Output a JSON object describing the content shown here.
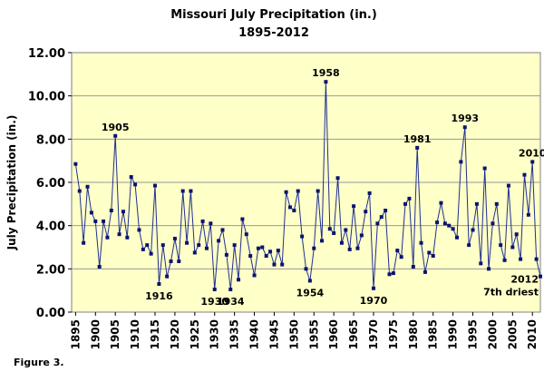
{
  "chart_data": {
    "type": "line",
    "title": "Missouri July Precipitation (in.)",
    "subtitle": "1895-2012",
    "xlabel": "",
    "ylabel": "July Precipitation (in.)",
    "ylim": [
      0,
      12
    ],
    "yticks": [
      "0.00",
      "2.00",
      "4.00",
      "6.00",
      "8.00",
      "10.00",
      "12.00"
    ],
    "xlim": [
      1894,
      2012
    ],
    "xticks": [
      "1895",
      "1900",
      "1905",
      "1910",
      "1915",
      "1920",
      "1925",
      "1930",
      "1935",
      "1940",
      "1945",
      "1950",
      "1955",
      "1960",
      "1965",
      "1970",
      "1975",
      "1980",
      "1985",
      "1990",
      "1995",
      "2000",
      "2005",
      "2010"
    ],
    "grid": true,
    "colors": {
      "line": "#1f2f8f",
      "marker": "#0a1470",
      "plot_bg": "#ffffc8",
      "grid": "#999999"
    },
    "series": [
      {
        "x": [
          1895,
          1896,
          1897,
          1898,
          1899,
          1900,
          1901,
          1902,
          1903,
          1904,
          1905,
          1906,
          1907,
          1908,
          1909,
          1910,
          1911,
          1912,
          1913,
          1914,
          1915,
          1916,
          1917,
          1918,
          1919,
          1920,
          1921,
          1922,
          1923,
          1924,
          1925,
          1926,
          1927,
          1928,
          1929,
          1930,
          1931,
          1932,
          1933,
          1934,
          1935,
          1936,
          1937,
          1938,
          1939,
          1940,
          1941,
          1942,
          1943,
          1944,
          1945,
          1946,
          1947,
          1948,
          1949,
          1950,
          1951,
          1952,
          1953,
          1954,
          1955,
          1956,
          1957,
          1958,
          1959,
          1960,
          1961,
          1962,
          1963,
          1964,
          1965,
          1966,
          1967,
          1968,
          1969,
          1970,
          1971,
          1972,
          1973,
          1974,
          1975,
          1976,
          1977,
          1978,
          1979,
          1980,
          1981,
          1982,
          1983,
          1984,
          1985,
          1986,
          1987,
          1988,
          1989,
          1990,
          1991,
          1992,
          1993,
          1994,
          1995,
          1996,
          1997,
          1998,
          1999,
          2000,
          2001,
          2002,
          2003,
          2004,
          2005,
          2006,
          2007,
          2008,
          2009,
          2010,
          2011,
          2012
        ],
        "values": [
          6.85,
          5.6,
          3.2,
          5.8,
          4.6,
          4.2,
          2.1,
          4.2,
          3.45,
          4.7,
          8.15,
          3.6,
          4.65,
          3.45,
          6.25,
          5.9,
          3.8,
          2.9,
          3.1,
          2.7,
          5.85,
          1.3,
          3.1,
          1.65,
          2.35,
          3.4,
          2.35,
          5.6,
          3.2,
          5.6,
          2.75,
          3.1,
          4.2,
          2.95,
          4.1,
          1.05,
          3.3,
          3.8,
          2.65,
          1.05,
          3.1,
          1.5,
          4.3,
          3.6,
          2.6,
          1.7,
          2.95,
          3.0,
          2.6,
          2.8,
          2.2,
          2.85,
          2.2,
          5.55,
          4.85,
          4.7,
          5.6,
          3.5,
          2.0,
          1.45,
          2.95,
          5.6,
          3.3,
          10.65,
          3.85,
          3.65,
          6.2,
          3.2,
          3.8,
          2.9,
          4.9,
          2.95,
          3.55,
          4.65,
          5.5,
          1.1,
          4.1,
          4.4,
          4.7,
          1.75,
          1.8,
          2.85,
          2.55,
          5.0,
          5.25,
          2.1,
          7.6,
          3.2,
          1.85,
          2.75,
          2.6,
          4.15,
          5.05,
          4.1,
          4.0,
          3.85,
          3.45,
          6.95,
          8.55,
          3.1,
          3.8,
          5.0,
          2.25,
          6.65,
          2.0,
          4.1,
          5.0,
          3.1,
          2.4,
          5.85,
          3.0,
          3.6,
          2.45,
          6.35,
          4.5,
          6.95,
          2.45,
          1.65
        ]
      }
    ],
    "annotations": [
      {
        "text": "1905",
        "year": 1905
      },
      {
        "text": "1916",
        "year": 1916
      },
      {
        "text": "1930",
        "year": 1930
      },
      {
        "text": "1934",
        "year": 1934
      },
      {
        "text": "1954",
        "year": 1954
      },
      {
        "text": "1958",
        "year": 1958
      },
      {
        "text": "1970",
        "year": 1970
      },
      {
        "text": "1981",
        "year": 1981
      },
      {
        "text": "1993",
        "year": 1993
      },
      {
        "text": "2010",
        "year": 2010
      },
      {
        "text": "2012",
        "year": 2012
      },
      {
        "text": "7th driest",
        "year": 2012
      }
    ]
  },
  "figure_caption": "Figure 3."
}
